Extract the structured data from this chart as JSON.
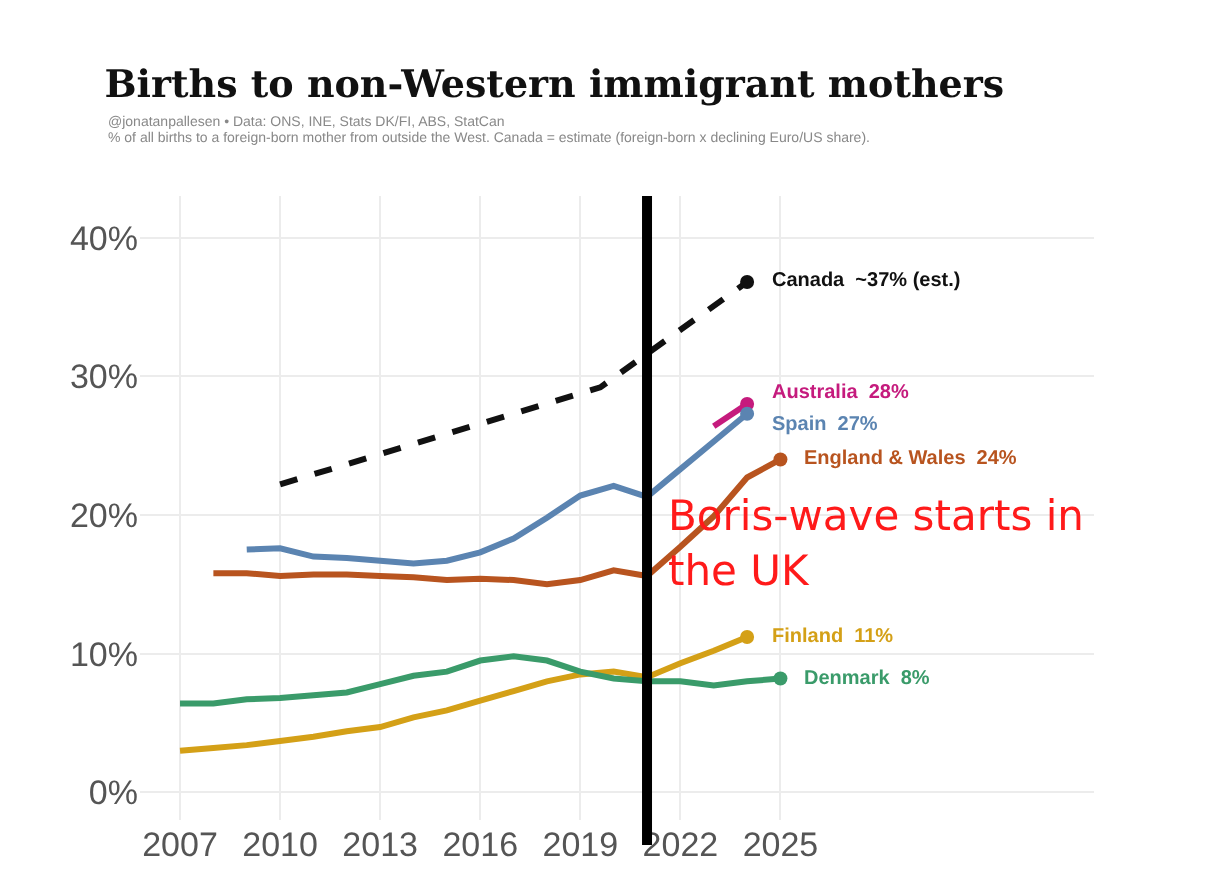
{
  "chart_data": {
    "type": "line",
    "title": "Births to non-Western immigrant mothers",
    "subtitle": "@jonatanpallesen • Data: ONS, INE, Stats DK/FI, ABS, StatCan\n% of all births to a foreign-born mother from outside the West. Canada = estimate (foreign-born x declining Euro/US share).",
    "series": [
      {
        "name": "Canada  ~37% (est.)",
        "color": "#111111",
        "line_style": "dashed",
        "x": [
          2010,
          2019.6,
          2024
        ],
        "values": [
          22.2,
          29.2,
          36.8
        ]
      },
      {
        "name": "Australia  28%",
        "color": "#c51b7d",
        "x": [
          2023,
          2024
        ],
        "values": [
          26.4,
          28.0
        ]
      },
      {
        "name": "Spain  27%",
        "color": "#5b84b1",
        "x": [
          2009,
          2010,
          2011,
          2012,
          2013,
          2014,
          2015,
          2016,
          2017,
          2018,
          2019,
          2020,
          2021,
          2022,
          2023,
          2024
        ],
        "values": [
          17.5,
          17.6,
          17.0,
          16.9,
          16.7,
          16.5,
          16.7,
          17.3,
          18.3,
          19.8,
          21.4,
          22.1,
          21.3,
          23.3,
          25.3,
          27.3
        ]
      },
      {
        "name": "England & Wales  24%",
        "color": "#b8541f",
        "x": [
          2008,
          2009,
          2010,
          2011,
          2012,
          2013,
          2014,
          2015,
          2016,
          2017,
          2018,
          2019,
          2020,
          2021,
          2022,
          2023,
          2024,
          2025
        ],
        "values": [
          15.8,
          15.8,
          15.6,
          15.7,
          15.7,
          15.6,
          15.5,
          15.3,
          15.4,
          15.3,
          15.0,
          15.3,
          16.0,
          15.6,
          17.7,
          19.9,
          22.7,
          24.0
        ]
      },
      {
        "name": "Finland  11%",
        "color": "#d4a017",
        "x": [
          2007,
          2008,
          2009,
          2010,
          2011,
          2012,
          2013,
          2014,
          2015,
          2016,
          2017,
          2018,
          2019,
          2020,
          2021,
          2022,
          2023,
          2024
        ],
        "values": [
          3.0,
          3.2,
          3.4,
          3.7,
          4.0,
          4.4,
          4.7,
          5.4,
          5.9,
          6.6,
          7.3,
          8.0,
          8.5,
          8.7,
          8.3,
          9.3,
          10.2,
          11.2
        ]
      },
      {
        "name": "Denmark  8%",
        "color": "#3a9b6a",
        "x": [
          2007,
          2008,
          2009,
          2010,
          2011,
          2012,
          2013,
          2014,
          2015,
          2016,
          2017,
          2018,
          2019,
          2020,
          2021,
          2022,
          2023,
          2024,
          2025
        ],
        "values": [
          6.4,
          6.4,
          6.7,
          6.8,
          7.0,
          7.2,
          7.8,
          8.4,
          8.7,
          9.5,
          9.8,
          9.5,
          8.7,
          8.2,
          8.0,
          8.0,
          7.7,
          8.0,
          8.2
        ]
      }
    ],
    "xlim": [
      2005.8,
      2034.4
    ],
    "xticks": [
      2007,
      2010,
      2013,
      2016,
      2019,
      2022,
      2025
    ],
    "ylim": [
      -2,
      43
    ],
    "yticks": [
      {
        "value": 0,
        "label": "0%"
      },
      {
        "value": 10,
        "label": "10%"
      },
      {
        "value": 20,
        "label": "20%"
      },
      {
        "value": 30,
        "label": "30%"
      },
      {
        "value": 40,
        "label": "40%"
      }
    ],
    "grid": true,
    "legend": false,
    "ref_lines": [
      {
        "axis": "x",
        "value": 2021,
        "label": "Boris-wave starts in the UK",
        "color": "#000000"
      }
    ]
  }
}
